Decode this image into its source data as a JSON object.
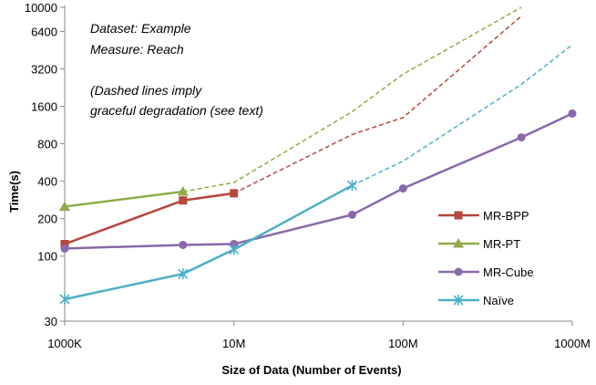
{
  "chart_data": {
    "type": "line",
    "xscale": "log",
    "yscale": "log",
    "xlabel": "Size of Data (Number of Events)",
    "ylabel": "Time(s)",
    "x_ticks": [
      {
        "value": 1000000,
        "label": "1000K"
      },
      {
        "value": 10000000,
        "label": "10M"
      },
      {
        "value": 100000000,
        "label": "100M"
      },
      {
        "value": 1000000000,
        "label": "1000M"
      }
    ],
    "y_ticks": [
      30,
      100,
      200,
      400,
      800,
      1600,
      3200,
      6400,
      10000
    ],
    "ylim": [
      30,
      10000
    ],
    "xlim": [
      1000000,
      1000000000
    ],
    "annotations": [
      "Dataset: Example",
      "Measure: Reach",
      "(Dashed lines imply",
      "graceful degradation (see text)"
    ],
    "legend_position": "right",
    "series": [
      {
        "name": "MR-BPP",
        "color": "#b7463d",
        "marker": "square",
        "points": [
          [
            1000000,
            125
          ],
          [
            5000000,
            280
          ],
          [
            10000000,
            320
          ]
        ],
        "dashed": [
          [
            10000000,
            320
          ],
          [
            50000000,
            950
          ],
          [
            100000000,
            1300
          ],
          [
            500000000,
            8500
          ]
        ]
      },
      {
        "name": "MR-PT",
        "color": "#8eab4a",
        "marker": "triangle",
        "points": [
          [
            1000000,
            250
          ],
          [
            5000000,
            330
          ]
        ],
        "dashed": [
          [
            5000000,
            330
          ],
          [
            10000000,
            390
          ],
          [
            50000000,
            1450
          ],
          [
            100000000,
            2900
          ],
          [
            500000000,
            10000
          ]
        ]
      },
      {
        "name": "MR-Cube",
        "color": "#8a68ab",
        "marker": "circle",
        "points": [
          [
            1000000,
            115
          ],
          [
            5000000,
            123
          ],
          [
            10000000,
            125
          ],
          [
            50000000,
            215
          ],
          [
            100000000,
            350
          ],
          [
            500000000,
            900
          ],
          [
            1000000000,
            1400
          ]
        ],
        "dashed": []
      },
      {
        "name": "Naïve",
        "color": "#4bafc8",
        "marker": "star",
        "points": [
          [
            1000000,
            45
          ],
          [
            5000000,
            72
          ],
          [
            10000000,
            113
          ],
          [
            50000000,
            370
          ]
        ],
        "dashed": [
          [
            50000000,
            370
          ],
          [
            100000000,
            580
          ],
          [
            500000000,
            2400
          ],
          [
            1000000000,
            5000
          ]
        ]
      }
    ]
  }
}
